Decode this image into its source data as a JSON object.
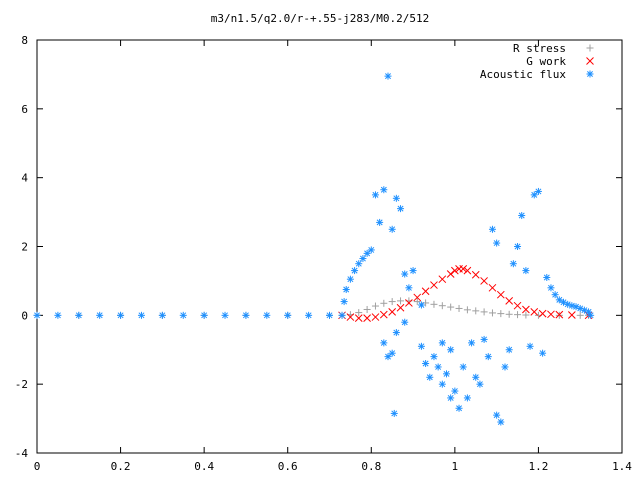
{
  "chart_data": {
    "type": "scatter",
    "title": "m3/n1.5/q2.0/r-+.55-j283/M0.2/512",
    "xlabel": "",
    "ylabel": "",
    "xlim": [
      0,
      1.4
    ],
    "ylim": [
      -4,
      8
    ],
    "x_ticks": [
      "0",
      "0.2",
      "0.4",
      "0.6",
      "0.8",
      "1",
      "1.2",
      "1.4"
    ],
    "y_ticks": [
      "8",
      "6",
      "4",
      "2",
      "0",
      "-2",
      "-4"
    ],
    "grid": false,
    "legend_position": "top-right",
    "series": [
      {
        "name": "R stress",
        "marker": "plus",
        "color": "#a0a0a0",
        "points": [
          [
            0,
            0
          ],
          [
            0.1,
            0
          ],
          [
            0.2,
            0
          ],
          [
            0.3,
            0
          ],
          [
            0.4,
            0
          ],
          [
            0.5,
            0
          ],
          [
            0.6,
            0
          ],
          [
            0.7,
            0
          ],
          [
            0.73,
            0
          ],
          [
            0.75,
            0.02
          ],
          [
            0.77,
            0.08
          ],
          [
            0.79,
            0.17
          ],
          [
            0.81,
            0.27
          ],
          [
            0.83,
            0.35
          ],
          [
            0.85,
            0.4
          ],
          [
            0.87,
            0.42
          ],
          [
            0.89,
            0.42
          ],
          [
            0.91,
            0.4
          ],
          [
            0.93,
            0.36
          ],
          [
            0.95,
            0.32
          ],
          [
            0.97,
            0.28
          ],
          [
            0.99,
            0.24
          ],
          [
            1.01,
            0.2
          ],
          [
            1.03,
            0.16
          ],
          [
            1.05,
            0.13
          ],
          [
            1.07,
            0.1
          ],
          [
            1.09,
            0.07
          ],
          [
            1.11,
            0.05
          ],
          [
            1.13,
            0.03
          ],
          [
            1.15,
            0.02
          ],
          [
            1.17,
            0.01
          ],
          [
            1.2,
            0
          ],
          [
            1.25,
            0
          ],
          [
            1.3,
            0
          ],
          [
            1.32,
            0
          ]
        ]
      },
      {
        "name": "G work",
        "marker": "cross",
        "color": "#ff0000",
        "points": [
          [
            0.73,
            0
          ],
          [
            0.75,
            -0.05
          ],
          [
            0.77,
            -0.08
          ],
          [
            0.79,
            -0.08
          ],
          [
            0.81,
            -0.05
          ],
          [
            0.83,
            0.02
          ],
          [
            0.85,
            0.1
          ],
          [
            0.87,
            0.22
          ],
          [
            0.89,
            0.36
          ],
          [
            0.91,
            0.52
          ],
          [
            0.93,
            0.7
          ],
          [
            0.95,
            0.88
          ],
          [
            0.97,
            1.05
          ],
          [
            0.99,
            1.2
          ],
          [
            1.0,
            1.3
          ],
          [
            1.01,
            1.35
          ],
          [
            1.02,
            1.35
          ],
          [
            1.03,
            1.3
          ],
          [
            1.05,
            1.18
          ],
          [
            1.07,
            1.0
          ],
          [
            1.09,
            0.8
          ],
          [
            1.11,
            0.6
          ],
          [
            1.13,
            0.42
          ],
          [
            1.15,
            0.28
          ],
          [
            1.17,
            0.17
          ],
          [
            1.19,
            0.1
          ],
          [
            1.21,
            0.05
          ],
          [
            1.23,
            0.03
          ],
          [
            1.25,
            0.02
          ],
          [
            1.28,
            0.01
          ],
          [
            1.32,
            0
          ]
        ]
      },
      {
        "name": "Acoustic flux",
        "marker": "star",
        "color": "#1e90ff",
        "points": [
          [
            0,
            0
          ],
          [
            0.05,
            0
          ],
          [
            0.1,
            0
          ],
          [
            0.15,
            0
          ],
          [
            0.2,
            0
          ],
          [
            0.25,
            0
          ],
          [
            0.3,
            0
          ],
          [
            0.35,
            0
          ],
          [
            0.4,
            0
          ],
          [
            0.45,
            0
          ],
          [
            0.5,
            0
          ],
          [
            0.55,
            0
          ],
          [
            0.6,
            0
          ],
          [
            0.65,
            0
          ],
          [
            0.7,
            0
          ],
          [
            0.73,
            0
          ],
          [
            0.735,
            0.4
          ],
          [
            0.74,
            0.75
          ],
          [
            0.75,
            1.05
          ],
          [
            0.76,
            1.3
          ],
          [
            0.77,
            1.5
          ],
          [
            0.78,
            1.65
          ],
          [
            0.79,
            1.8
          ],
          [
            0.8,
            1.9
          ],
          [
            0.81,
            3.5
          ],
          [
            0.82,
            2.7
          ],
          [
            0.83,
            3.65
          ],
          [
            0.84,
            6.95
          ],
          [
            0.85,
            2.5
          ],
          [
            0.86,
            3.4
          ],
          [
            0.87,
            3.1
          ],
          [
            0.83,
            -0.8
          ],
          [
            0.84,
            -1.2
          ],
          [
            0.85,
            -1.1
          ],
          [
            0.855,
            -2.85
          ],
          [
            0.86,
            -0.5
          ],
          [
            0.88,
            -0.2
          ],
          [
            0.88,
            1.2
          ],
          [
            0.89,
            0.8
          ],
          [
            0.9,
            1.3
          ],
          [
            0.92,
            0.3
          ],
          [
            0.92,
            -0.9
          ],
          [
            0.93,
            -1.4
          ],
          [
            0.94,
            -1.8
          ],
          [
            0.95,
            -1.2
          ],
          [
            0.96,
            -1.5
          ],
          [
            0.97,
            -0.8
          ],
          [
            0.97,
            -2.0
          ],
          [
            0.98,
            -1.7
          ],
          [
            0.99,
            -1.0
          ],
          [
            0.99,
            -2.4
          ],
          [
            1.0,
            -2.2
          ],
          [
            1.01,
            -2.7
          ],
          [
            1.02,
            -1.5
          ],
          [
            1.03,
            -2.4
          ],
          [
            1.04,
            -0.8
          ],
          [
            1.05,
            -1.8
          ],
          [
            1.06,
            -2.0
          ],
          [
            1.07,
            -0.7
          ],
          [
            1.08,
            -1.2
          ],
          [
            1.09,
            2.5
          ],
          [
            1.1,
            -2.9
          ],
          [
            1.1,
            2.1
          ],
          [
            1.11,
            -3.1
          ],
          [
            1.12,
            -1.5
          ],
          [
            1.13,
            -1.0
          ],
          [
            1.14,
            1.5
          ],
          [
            1.15,
            2.0
          ],
          [
            1.16,
            2.9
          ],
          [
            1.17,
            1.3
          ],
          [
            1.18,
            -0.9
          ],
          [
            1.19,
            3.5
          ],
          [
            1.2,
            3.6
          ],
          [
            1.21,
            -1.1
          ],
          [
            1.22,
            1.1
          ],
          [
            1.23,
            0.8
          ],
          [
            1.24,
            0.6
          ],
          [
            1.25,
            0.45
          ],
          [
            1.26,
            0.38
          ],
          [
            1.27,
            0.32
          ],
          [
            1.28,
            0.28
          ],
          [
            1.29,
            0.25
          ],
          [
            1.3,
            0.2
          ],
          [
            1.31,
            0.15
          ],
          [
            1.32,
            0.1
          ],
          [
            1.325,
            0
          ]
        ]
      }
    ]
  }
}
